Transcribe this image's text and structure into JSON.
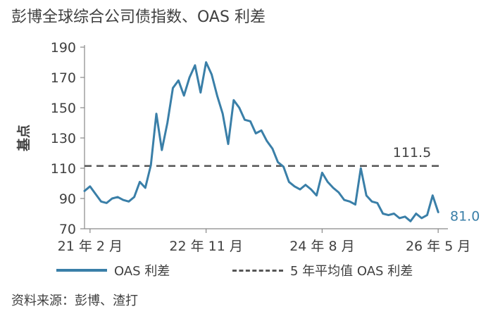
{
  "title": "彭博全球综合公司债指数、OAS 利差",
  "source": "资料来源：彭博、渣打",
  "colors": {
    "series": "#3a7fa8",
    "average": "#555555",
    "text": "#404040",
    "axis": "#888888"
  },
  "legend": {
    "series_label": "OAS 利差",
    "average_label": "5 年平均值 OAS 利差"
  },
  "chart_data": {
    "type": "line",
    "title": "彭博全球综合公司债指数、OAS 利差",
    "ylabel": "基点",
    "xlabel": "",
    "ylim": [
      70,
      190
    ],
    "yticks": [
      70,
      90,
      110,
      130,
      150,
      170,
      190
    ],
    "xlim": [
      "2021-01",
      "2026-06"
    ],
    "xticks": [
      {
        "x": "2021-02",
        "label": "21 年 2 月"
      },
      {
        "x": "2022-11",
        "label": "22 年 11 月"
      },
      {
        "x": "2024-08",
        "label": "24 年 8 月"
      },
      {
        "x": "2026-05",
        "label": "26 年 5 月"
      }
    ],
    "legend_position": "bottom",
    "series": [
      {
        "name": "OAS 利差",
        "x": [
          "2021-01",
          "2021-02",
          "2021-03",
          "2021-04",
          "2021-05",
          "2021-06",
          "2021-07",
          "2021-08",
          "2021-09",
          "2021-10",
          "2021-11",
          "2021-12",
          "2022-01",
          "2022-02",
          "2022-03",
          "2022-04",
          "2022-05",
          "2022-06",
          "2022-07",
          "2022-08",
          "2022-09",
          "2022-10",
          "2022-11",
          "2022-12",
          "2023-01",
          "2023-02",
          "2023-03",
          "2023-04",
          "2023-05",
          "2023-06",
          "2023-07",
          "2023-08",
          "2023-09",
          "2023-10",
          "2023-11",
          "2023-12",
          "2024-01",
          "2024-02",
          "2024-03",
          "2024-04",
          "2024-05",
          "2024-06",
          "2024-07",
          "2024-08",
          "2024-09",
          "2024-10",
          "2024-11",
          "2024-12",
          "2025-01",
          "2025-02",
          "2025-03",
          "2025-04",
          "2025-05",
          "2025-06",
          "2025-07",
          "2025-08",
          "2025-09",
          "2025-10",
          "2025-11",
          "2025-12",
          "2026-01",
          "2026-02",
          "2026-03",
          "2026-04",
          "2026-05"
        ],
        "values": [
          95,
          98,
          93,
          88,
          87,
          90,
          91,
          89,
          88,
          91,
          101,
          97,
          112,
          146,
          122,
          140,
          163,
          168,
          158,
          170,
          178,
          160,
          180,
          172,
          158,
          146,
          126,
          155,
          150,
          142,
          141,
          133,
          135,
          128,
          123,
          114,
          111,
          101,
          98,
          96,
          99,
          96,
          92,
          107,
          101,
          97,
          94,
          89,
          88,
          86,
          110,
          92,
          88,
          87,
          80,
          79,
          80,
          77,
          78,
          75,
          80,
          77,
          79,
          92,
          81
        ]
      }
    ],
    "reference_lines": [
      {
        "name": "5 年平均值 OAS 利差",
        "y": 111.5,
        "label": "111.5",
        "style": "dashed"
      }
    ],
    "annotations": [
      {
        "text": "81.0",
        "x": "2026-05",
        "y": 81.0
      }
    ]
  }
}
